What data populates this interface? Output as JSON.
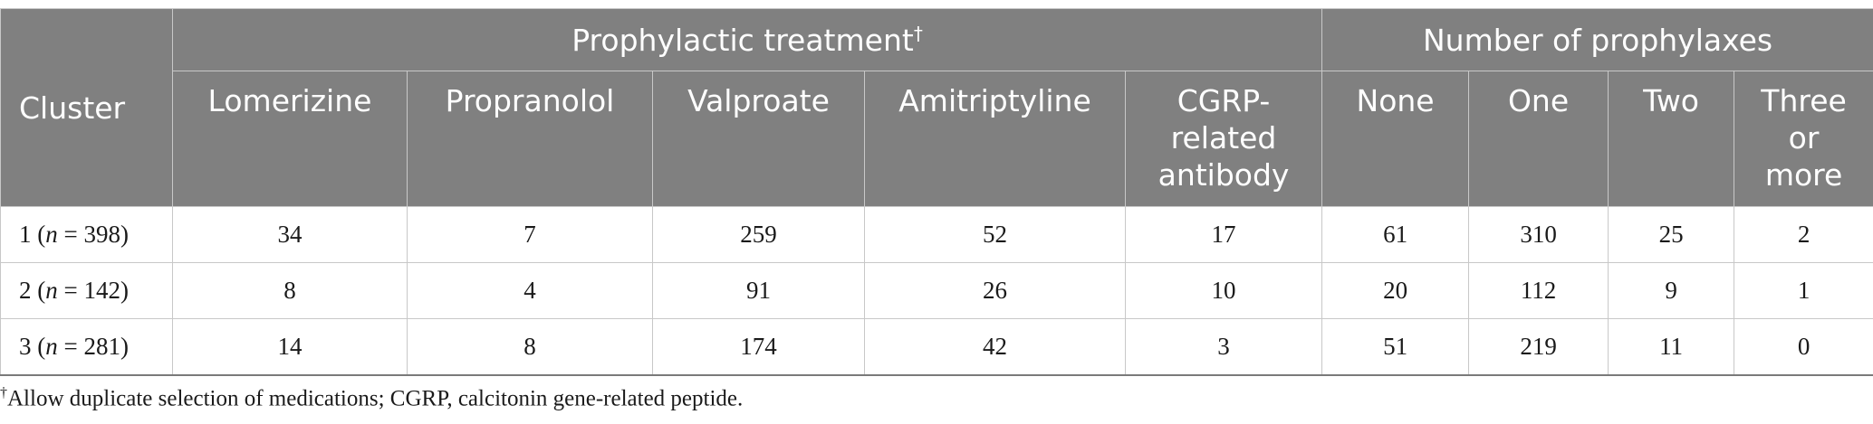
{
  "table": {
    "cluster_header": "Cluster",
    "groups": {
      "prophylactic": "Prophylactic treatment",
      "prophylactic_mark": "†",
      "number": "Number of prophylaxes"
    },
    "columns": [
      "Lomerizine",
      "Propranolol",
      "Valproate",
      "Amitriptyline",
      "CGRP-related antibody",
      "None",
      "One",
      "Two",
      "Three or more"
    ],
    "rows": [
      {
        "cluster_id": "1",
        "n_label": "n",
        "n_value": "= 398)",
        "values": [
          "34",
          "7",
          "259",
          "52",
          "17",
          "61",
          "310",
          "25",
          "2"
        ]
      },
      {
        "cluster_id": "2",
        "n_label": "n",
        "n_value": "= 142)",
        "values": [
          "8",
          "4",
          "91",
          "26",
          "10",
          "20",
          "112",
          "9",
          "1"
        ]
      },
      {
        "cluster_id": "3",
        "n_label": "n",
        "n_value": "= 281)",
        "values": [
          "14",
          "8",
          "174",
          "42",
          "3",
          "51",
          "219",
          "11",
          "0"
        ]
      }
    ]
  },
  "footnote": {
    "mark": "†",
    "text": "Allow duplicate selection of medications; CGRP, calcitonin gene-related peptide."
  }
}
